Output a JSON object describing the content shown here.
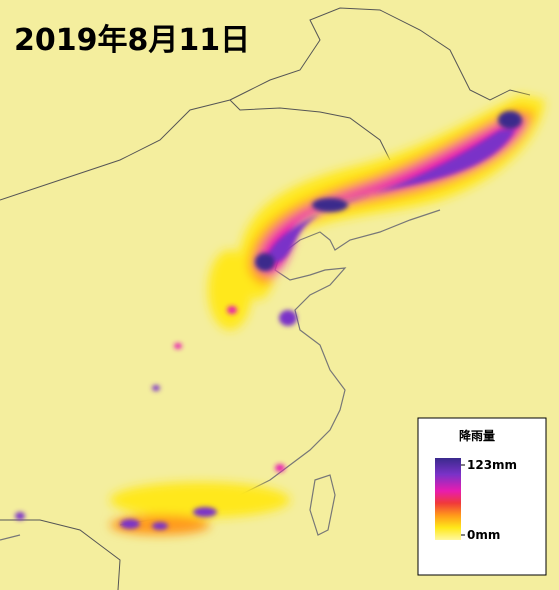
{
  "title": "2019年8月11日",
  "legend": {
    "title": "降雨量",
    "ticks": [
      {
        "value": 123,
        "label": "123mm"
      },
      {
        "value": 0,
        "label": "0mm"
      }
    ]
  }
}
